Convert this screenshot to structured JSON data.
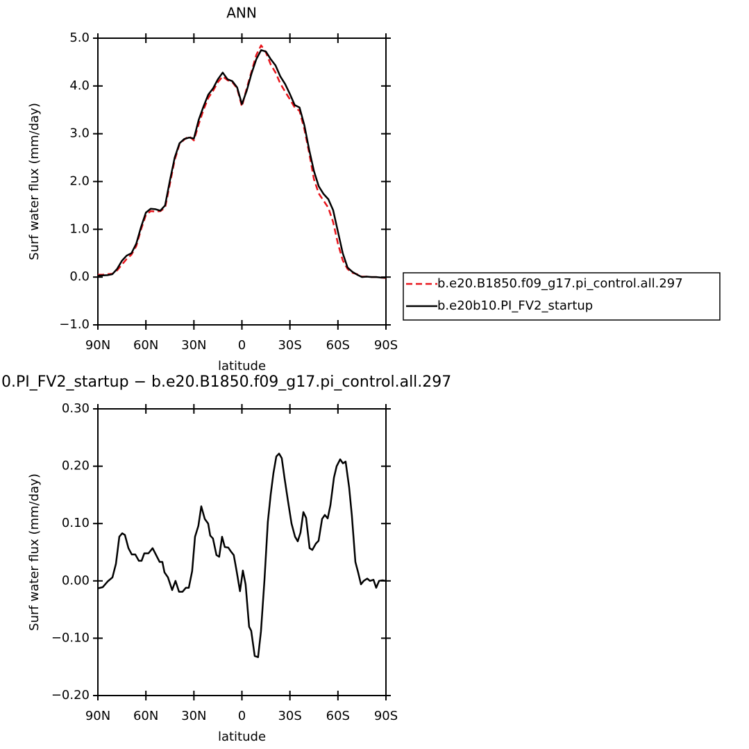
{
  "chart_data": [
    {
      "type": "line",
      "title": "ANN",
      "xlabel": "latitude",
      "ylabel": "Surf water flux (mm/day)",
      "x": [
        90,
        87,
        84,
        81,
        78,
        75,
        72,
        69,
        66,
        63,
        60,
        57,
        54,
        51,
        48,
        45,
        42,
        39,
        36,
        33,
        30,
        27,
        24,
        21,
        18,
        15,
        12,
        9,
        6,
        3,
        0,
        -3,
        -6,
        -9,
        -12,
        -15,
        -18,
        -21,
        -24,
        -27,
        -30,
        -33,
        -36,
        -39,
        -42,
        -45,
        -48,
        -51,
        -54,
        -57,
        -60,
        -63,
        -66,
        -69,
        -72,
        -75,
        -78,
        -81,
        -84,
        -87,
        -90
      ],
      "series": [
        {
          "name": "b.e20.B1850.f09_g17.pi_control.all.297",
          "color": "#e8141b",
          "line_style": "dashed",
          "values": [
            0.05,
            0.05,
            0.06,
            0.07,
            0.14,
            0.26,
            0.38,
            0.47,
            0.65,
            1.0,
            1.3,
            1.38,
            1.37,
            1.38,
            1.45,
            1.95,
            2.45,
            2.78,
            2.88,
            2.95,
            2.86,
            3.2,
            3.5,
            3.75,
            3.9,
            4.08,
            4.2,
            4.12,
            4.08,
            3.95,
            3.57,
            3.95,
            4.3,
            4.65,
            4.85,
            4.7,
            4.45,
            4.28,
            4.05,
            3.88,
            3.72,
            3.55,
            3.48,
            3.1,
            2.6,
            2.05,
            1.75,
            1.6,
            1.45,
            1.15,
            0.7,
            0.35,
            0.17,
            0.09,
            0.06,
            0.01,
            0.01,
            0.0,
            0.0,
            -0.01,
            -0.02
          ]
        },
        {
          "name": "b.e20b10.PI_FV2_startup",
          "color": "#000000",
          "line_style": "solid",
          "values": [
            0.03,
            0.035,
            0.04,
            0.06,
            0.17,
            0.34,
            0.45,
            0.5,
            0.7,
            1.05,
            1.35,
            1.43,
            1.42,
            1.39,
            1.5,
            2.02,
            2.5,
            2.8,
            2.89,
            2.92,
            2.9,
            3.29,
            3.57,
            3.82,
            3.95,
            4.14,
            4.28,
            4.14,
            4.1,
            3.97,
            3.62,
            3.9,
            4.26,
            4.56,
            4.75,
            4.72,
            4.56,
            4.43,
            4.2,
            4.04,
            3.83,
            3.6,
            3.55,
            3.18,
            2.67,
            2.22,
            1.9,
            1.74,
            1.63,
            1.4,
            0.95,
            0.5,
            0.2,
            0.11,
            0.05,
            0.0,
            0.01,
            0.0,
            0.0,
            -0.01,
            -0.01
          ]
        }
      ],
      "xlim": [
        90,
        -90
      ],
      "xticks": [
        {
          "value": 90,
          "label": "90N"
        },
        {
          "value": 60,
          "label": "60N"
        },
        {
          "value": 30,
          "label": "30N"
        },
        0,
        {
          "value": -30,
          "label": "30S"
        },
        {
          "value": -60,
          "label": "60S"
        },
        {
          "value": -90,
          "label": "90S"
        }
      ],
      "ylim": [
        -1,
        5
      ],
      "yticks": [
        {
          "value": 5,
          "label": "5.0"
        },
        {
          "value": 4,
          "label": "4.0"
        },
        {
          "value": 3,
          "label": "3.0"
        },
        {
          "value": 2,
          "label": "2.0"
        },
        {
          "value": 1,
          "label": "1.0"
        },
        {
          "value": 0,
          "label": "0.0"
        },
        {
          "value": -1,
          "label": "−1.0"
        }
      ],
      "legend": "right"
    },
    {
      "type": "line",
      "title": "0.PI_FV2_startup − b.e20.B1850.f09_g17.pi_control.all.297",
      "xlabel": "latitude",
      "ylabel": "Surf water flux (mm/day)",
      "x": [
        90,
        87.0,
        83.9,
        80.9,
        78.7,
        76.6,
        74.8,
        73.1,
        70.9,
        68.8,
        66.6,
        64.4,
        62.7,
        61.0,
        58.4,
        55.8,
        53.6,
        51.4,
        49.7,
        48.4,
        46.2,
        43.6,
        41.5,
        39.3,
        37.1,
        35.0,
        33.2,
        31.1,
        29.3,
        27.2,
        25.4,
        23.2,
        21.1,
        19.8,
        18.1,
        15.9,
        14.2,
        12.4,
        10.7,
        8.5,
        6.8,
        5.1,
        3.3,
        1.2,
        -0.6,
        -2.3,
        -4.5,
        -5.8,
        -8.0,
        -10.1,
        -11.9,
        -14.1,
        -16.2,
        -18.0,
        -19.7,
        -21.5,
        -23.2,
        -24.9,
        -26.7,
        -28.8,
        -31.0,
        -33.2,
        -34.9,
        -36.6,
        -38.4,
        -40.1,
        -42.3,
        -44.0,
        -46.2,
        -47.9,
        -50.1,
        -51.8,
        -53.6,
        -55.3,
        -57.5,
        -59.2,
        -61.4,
        -63.1,
        -64.8,
        -67.0,
        -68.7,
        -70.9,
        -72.6,
        -74.4,
        -76.1,
        -78.3,
        -80.0,
        -82.2,
        -83.9,
        -85.7,
        -87.8,
        -90
      ],
      "series": [
        {
          "color": "#000000",
          "line_style": "solid",
          "values": [
            -0.013,
            -0.011,
            -0.001,
            0.006,
            0.03,
            0.077,
            0.083,
            0.08,
            0.057,
            0.046,
            0.046,
            0.035,
            0.035,
            0.048,
            0.048,
            0.057,
            0.045,
            0.033,
            0.033,
            0.015,
            0.006,
            -0.016,
            0,
            -0.019,
            -0.019,
            -0.012,
            -0.012,
            0.017,
            0.077,
            0.096,
            0.13,
            0.108,
            0.1,
            0.079,
            0.074,
            0.045,
            0.042,
            0.077,
            0.059,
            0.058,
            0.051,
            0.045,
            0.017,
            -0.018,
            0.018,
            -0.006,
            -0.08,
            -0.087,
            -0.131,
            -0.133,
            -0.088,
            0.002,
            0.103,
            0.151,
            0.188,
            0.217,
            0.222,
            0.214,
            0.178,
            0.139,
            0.1,
            0.077,
            0.069,
            0.084,
            0.12,
            0.11,
            0.057,
            0.054,
            0.065,
            0.07,
            0.108,
            0.115,
            0.109,
            0.132,
            0.18,
            0.2,
            0.212,
            0.205,
            0.208,
            0.163,
            0.114,
            0.033,
            0.015,
            -0.006,
            0,
            0.004,
            0,
            0.002,
            -0.012,
            0,
            0.001,
            0
          ]
        }
      ],
      "xlim": [
        90,
        -90
      ],
      "xticks": [
        {
          "value": 90,
          "label": "90N"
        },
        {
          "value": 60,
          "label": "60N"
        },
        {
          "value": 30,
          "label": "30N"
        },
        0,
        {
          "value": -30,
          "label": "30S"
        },
        {
          "value": -60,
          "label": "60S"
        },
        {
          "value": -90,
          "label": "90S"
        }
      ],
      "ylim": [
        -0.2,
        0.3
      ],
      "yticks": [
        {
          "value": 0.3,
          "label": "0.30"
        },
        {
          "value": 0.2,
          "label": "0.20"
        },
        {
          "value": 0.1,
          "label": "0.10"
        },
        {
          "value": 0,
          "label": "0.00"
        },
        {
          "value": -0.1,
          "label": "−0.10"
        },
        {
          "value": -0.2,
          "label": "−0.20"
        }
      ]
    }
  ]
}
